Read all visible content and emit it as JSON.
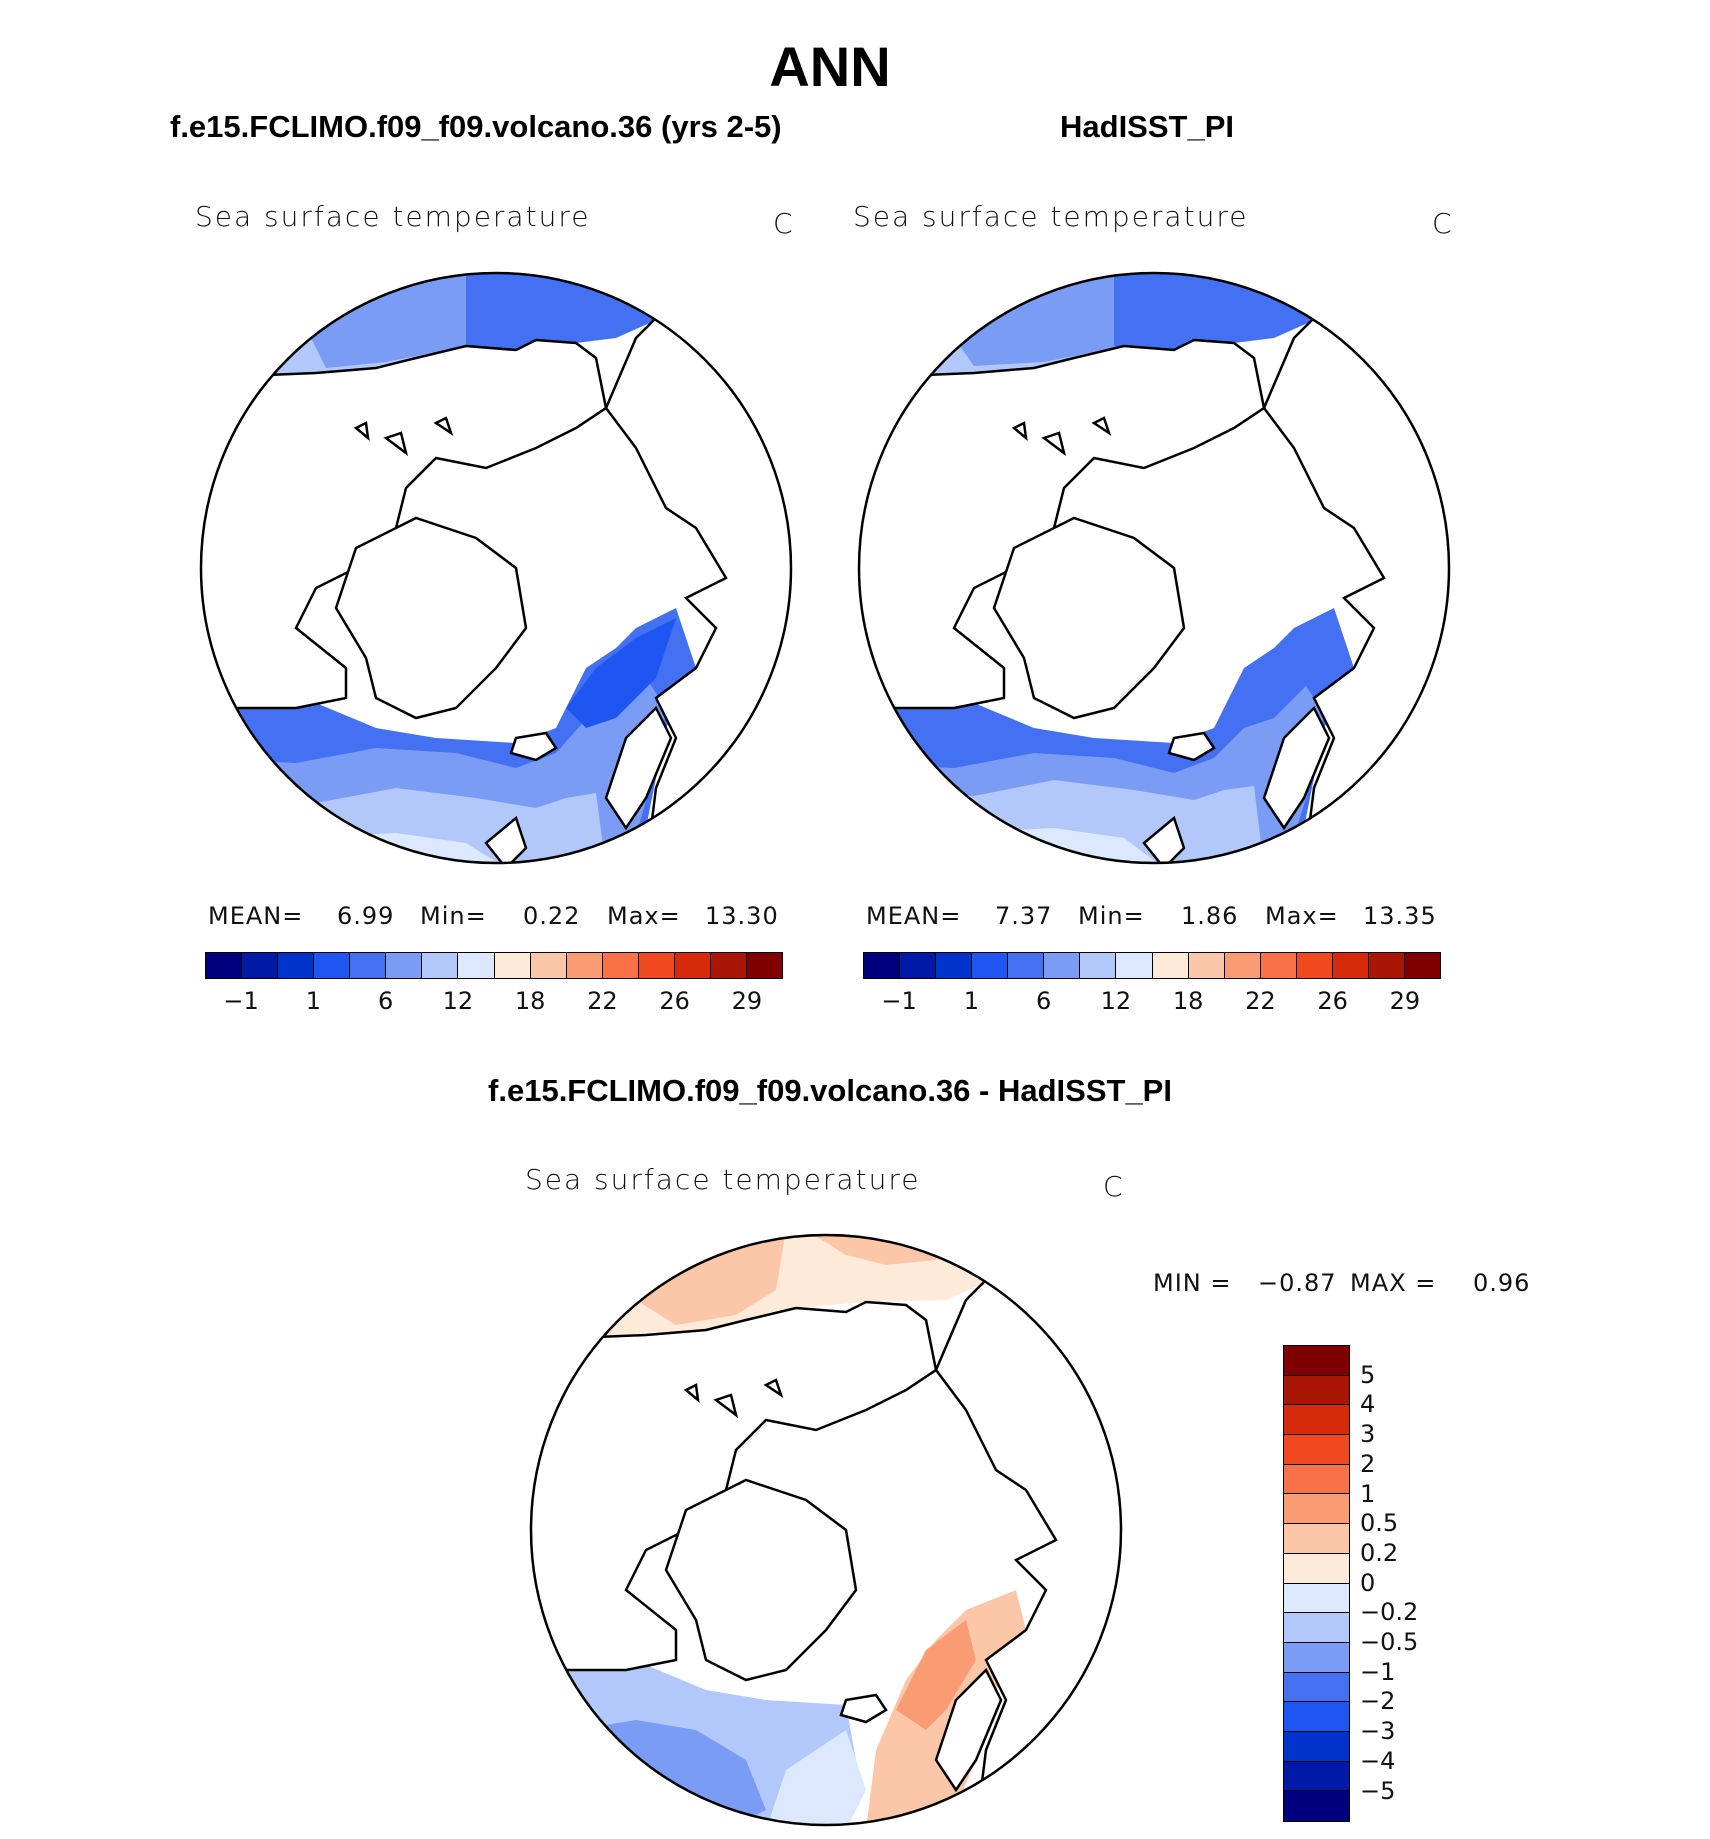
{
  "main_title": "ANN",
  "panels": {
    "top_left": {
      "case_title": "f.e15.FCLIMO.f09_f09.volcano.36 (yrs 2-5)",
      "variable": "Sea surface temperature",
      "units": "C",
      "stats": {
        "mean_label": "MEAN=",
        "mean": "6.99",
        "min_label": "Min=",
        "min": "0.22",
        "max_label": "Max=",
        "max": "13.30"
      }
    },
    "top_right": {
      "case_title": "HadISST_PI",
      "variable": "Sea surface temperature",
      "units": "C",
      "stats": {
        "mean_label": "MEAN=",
        "mean": "7.37",
        "min_label": "Min=",
        "min": "1.86",
        "max_label": "Max=",
        "max": "13.35"
      }
    },
    "bottom": {
      "case_title": "f.e15.FCLIMO.f09_f09.volcano.36 - HadISST_PI",
      "variable": "Sea surface temperature",
      "units": "C",
      "stats": {
        "min_label": "MIN =",
        "min": "−0.87",
        "max_label": "MAX =",
        "max": "0.96"
      }
    }
  },
  "colorbars": {
    "absolute": {
      "colors": [
        "#00007f",
        "#0019a6",
        "#0033cc",
        "#1f55f0",
        "#4471f2",
        "#7b9cf5",
        "#b2c7fa",
        "#dbe8fd",
        "#feead9",
        "#fcc7a9",
        "#fa9c73",
        "#f97146",
        "#f0481f",
        "#d62b0b",
        "#aa1605",
        "#800000"
      ],
      "labels": [
        "−1",
        "1",
        "6",
        "12",
        "18",
        "22",
        "26",
        "29"
      ]
    },
    "difference": {
      "colors": [
        "#800000",
        "#aa1605",
        "#d62b0b",
        "#f0481f",
        "#f97146",
        "#fa9c73",
        "#fcc7a9",
        "#feead9",
        "#dbe8fd",
        "#b2c7fa",
        "#7b9cf5",
        "#4471f2",
        "#1f55f0",
        "#0033cc",
        "#0019a6",
        "#00007f"
      ],
      "labels": [
        "5",
        "4",
        "3",
        "2",
        "1",
        "0.5",
        "0.2",
        "0",
        "−0.2",
        "−0.5",
        "−1",
        "−2",
        "−3",
        "−4",
        "−5"
      ]
    }
  }
}
